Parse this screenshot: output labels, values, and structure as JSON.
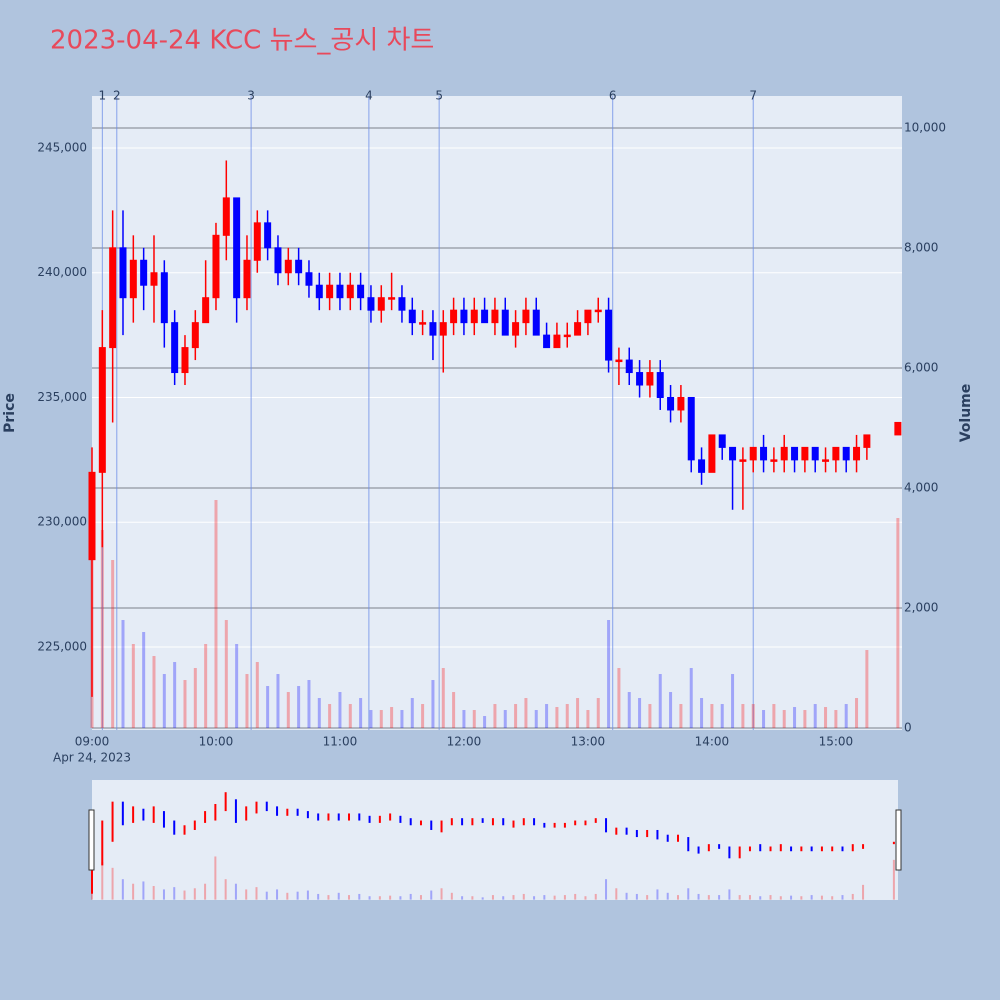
{
  "chart_data": {
    "type": "candlestick",
    "title": "2023-04-24 KCC 뉴스_공시 차트",
    "y_label": "Price",
    "y2_label": "Volume",
    "x_date_label": "Apr 24, 2023",
    "x": [
      "09:00",
      "09:05",
      "09:10",
      "09:15",
      "09:20",
      "09:25",
      "09:30",
      "09:35",
      "09:40",
      "09:45",
      "09:50",
      "09:55",
      "10:00",
      "10:05",
      "10:10",
      "10:15",
      "10:20",
      "10:25",
      "10:30",
      "10:35",
      "10:40",
      "10:45",
      "10:50",
      "10:55",
      "11:00",
      "11:05",
      "11:10",
      "11:15",
      "11:20",
      "11:25",
      "11:30",
      "11:35",
      "11:40",
      "11:45",
      "11:50",
      "11:55",
      "12:00",
      "12:05",
      "12:10",
      "12:15",
      "12:20",
      "12:25",
      "12:30",
      "12:35",
      "12:40",
      "12:45",
      "12:50",
      "12:55",
      "13:00",
      "13:05",
      "13:10",
      "13:15",
      "13:20",
      "13:25",
      "13:30",
      "13:35",
      "13:40",
      "13:45",
      "13:50",
      "13:55",
      "14:00",
      "14:05",
      "14:10",
      "14:15",
      "14:20",
      "14:25",
      "14:30",
      "14:35",
      "14:40",
      "14:45",
      "14:50",
      "14:55",
      "15:00",
      "15:05",
      "15:10",
      "15:15",
      "15:30"
    ],
    "open": [
      228500,
      232000,
      237000,
      241000,
      239000,
      240500,
      239500,
      240000,
      238000,
      236000,
      237000,
      238000,
      239000,
      241500,
      243000,
      239000,
      240500,
      242000,
      241000,
      240000,
      240500,
      240000,
      239500,
      239000,
      239500,
      239000,
      239500,
      239000,
      238500,
      239000,
      239000,
      238500,
      238000,
      238000,
      237500,
      238000,
      238500,
      238000,
      238500,
      238000,
      238500,
      237500,
      238000,
      238500,
      237500,
      237000,
      237500,
      237500,
      238000,
      238500,
      238500,
      236500,
      236500,
      236000,
      235500,
      236000,
      235000,
      234500,
      235000,
      232500,
      232000,
      233500,
      233000,
      232500,
      232500,
      233000,
      232500,
      232500,
      233000,
      232500,
      233000,
      232500,
      232500,
      233000,
      232500,
      233000,
      233500
    ],
    "high": [
      233000,
      238500,
      242500,
      242500,
      241500,
      241000,
      241500,
      240500,
      238500,
      237500,
      238500,
      240500,
      242000,
      244500,
      243000,
      241500,
      242500,
      242500,
      241500,
      241000,
      241000,
      240500,
      240000,
      240000,
      240000,
      240000,
      240000,
      239500,
      239500,
      240000,
      239500,
      239000,
      238500,
      238500,
      238500,
      239000,
      239000,
      239000,
      239000,
      239000,
      239000,
      238500,
      239000,
      239000,
      238000,
      238000,
      238000,
      238500,
      238500,
      239000,
      239000,
      237000,
      237000,
      236500,
      236500,
      236500,
      235500,
      235500,
      235000,
      233000,
      233500,
      233500,
      233000,
      233000,
      233000,
      233500,
      233000,
      233500,
      233000,
      233000,
      233000,
      233000,
      233000,
      233000,
      233500,
      233500,
      234000
    ],
    "low": [
      223000,
      229000,
      234000,
      237500,
      238000,
      238500,
      238000,
      237000,
      235500,
      235500,
      236500,
      238000,
      238500,
      240500,
      238000,
      238500,
      240000,
      240500,
      239500,
      239500,
      239500,
      239000,
      238500,
      238500,
      238500,
      238500,
      238500,
      238000,
      238000,
      238500,
      238000,
      237500,
      237500,
      236500,
      236000,
      237500,
      237500,
      237500,
      238000,
      237500,
      237500,
      237000,
      237500,
      237500,
      237000,
      237000,
      237000,
      237500,
      237500,
      238000,
      236000,
      235500,
      235500,
      235000,
      235000,
      234500,
      234000,
      234000,
      232000,
      231500,
      232000,
      232500,
      230500,
      230500,
      232000,
      232000,
      232000,
      232000,
      232000,
      232000,
      232000,
      232000,
      232000,
      232000,
      232000,
      232500,
      233500
    ],
    "close": [
      232000,
      237000,
      241000,
      239000,
      240500,
      239500,
      240000,
      238000,
      236000,
      237000,
      238000,
      239000,
      241500,
      243000,
      239000,
      240500,
      242000,
      241000,
      240000,
      240500,
      240000,
      239500,
      239000,
      239500,
      239000,
      239500,
      239000,
      238500,
      239000,
      239000,
      238500,
      238000,
      238000,
      237500,
      238000,
      238500,
      238000,
      238500,
      238000,
      238500,
      237500,
      238000,
      238500,
      237500,
      237000,
      237500,
      237500,
      238000,
      238500,
      238500,
      236500,
      236500,
      236000,
      235500,
      236000,
      235000,
      234500,
      235000,
      232500,
      232000,
      233500,
      233000,
      232500,
      232500,
      233000,
      232500,
      232500,
      233000,
      232500,
      233000,
      232500,
      232500,
      233000,
      232500,
      233000,
      233500,
      234000
    ],
    "volume": [
      3000,
      3300,
      2800,
      1800,
      1400,
      1600,
      1200,
      900,
      1100,
      800,
      1000,
      1400,
      3800,
      1800,
      1400,
      900,
      1100,
      700,
      900,
      600,
      700,
      800,
      500,
      400,
      600,
      400,
      500,
      300,
      300,
      350,
      300,
      500,
      400,
      800,
      1000,
      600,
      300,
      300,
      200,
      400,
      300,
      400,
      500,
      300,
      400,
      350,
      400,
      500,
      300,
      500,
      1800,
      1000,
      600,
      500,
      400,
      900,
      600,
      400,
      1000,
      500,
      400,
      400,
      900,
      400,
      400,
      300,
      400,
      300,
      350,
      300,
      400,
      350,
      300,
      400,
      500,
      1300,
      3500
    ],
    "increasing_color": "#ff0000",
    "decreasing_color": "#0000ff",
    "news": [
      {
        "label": "1",
        "x": "09:05"
      },
      {
        "label": "2",
        "x": "09:12"
      },
      {
        "label": "3",
        "x": "10:17"
      },
      {
        "label": "4",
        "x": "11:14"
      },
      {
        "label": "5",
        "x": "11:48"
      },
      {
        "label": "6",
        "x": "13:12"
      },
      {
        "label": "7",
        "x": "14:20"
      }
    ],
    "xlim": [
      "09:00",
      "15:32"
    ],
    "xticks": [
      "09:00",
      "10:00",
      "11:00",
      "12:00",
      "13:00",
      "14:00",
      "15:00"
    ],
    "ylim": [
      221673,
      247084
    ],
    "yticks": [
      {
        "value": 225000,
        "label": "225,000"
      },
      {
        "value": 230000,
        "label": "230,000"
      },
      {
        "value": 235000,
        "label": "235,000"
      },
      {
        "value": 240000,
        "label": "240,000"
      },
      {
        "value": 245000,
        "label": "245,000"
      }
    ],
    "y2lim": [
      -33,
      10533
    ],
    "y2ticks": [
      0,
      {
        "value": 2000,
        "label": "2,000"
      },
      {
        "value": 4000,
        "label": "4,000"
      },
      {
        "value": 6000,
        "label": "6,000"
      },
      {
        "value": 8000,
        "label": "8,000"
      },
      {
        "value": 10000,
        "label": "10,000"
      }
    ],
    "grid": true,
    "range_slider": true
  }
}
